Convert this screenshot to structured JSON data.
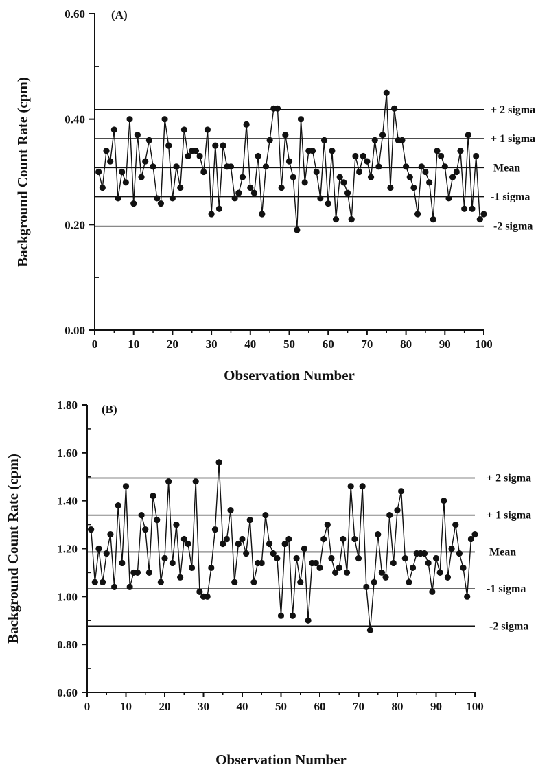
{
  "chart_data": [
    {
      "type": "line",
      "panel_label": "(A)",
      "xlabel": "Observation Number",
      "ylabel": "Background Count Rate (cpm)",
      "xlim": [
        0,
        100
      ],
      "ylim": [
        0.0,
        0.6
      ],
      "x_ticks": [
        0,
        10,
        20,
        30,
        40,
        50,
        60,
        70,
        80,
        90,
        100
      ],
      "y_ticks": [
        0.0,
        0.2,
        0.4,
        0.6
      ],
      "x_tick_labels": [
        "0",
        "10",
        "20",
        "30",
        "40",
        "50",
        "60",
        "70",
        "80",
        "90",
        "100"
      ],
      "y_tick_labels": [
        "0.00",
        "0.20",
        "0.40",
        "0.60"
      ],
      "grid": false,
      "reference_lines": [
        {
          "label": "+ 2 sigma",
          "value": 0.418
        },
        {
          "label": "+ 1 sigma",
          "value": 0.363
        },
        {
          "label": "Mean",
          "value": 0.308
        },
        {
          "label": "-1 sigma",
          "value": 0.253
        },
        {
          "label": "-2 sigma",
          "value": 0.197
        }
      ],
      "series": [
        {
          "x": [
            1,
            2,
            3,
            4,
            5,
            6,
            7,
            8,
            9,
            10,
            11,
            12,
            13,
            14,
            15,
            16,
            17,
            18,
            19,
            20,
            21,
            22,
            23,
            24,
            25,
            26,
            27,
            28,
            29,
            30,
            31,
            32,
            33,
            34,
            35,
            36,
            37,
            38,
            39,
            40,
            41,
            42,
            43,
            44,
            45,
            46,
            47,
            48,
            49,
            50,
            51,
            52,
            53,
            54,
            55,
            56,
            57,
            58,
            59,
            60,
            61,
            62,
            63,
            64,
            65,
            66,
            67,
            68,
            69,
            70,
            71,
            72,
            73,
            74,
            75,
            76,
            77,
            78,
            79,
            80,
            81,
            82,
            83,
            84,
            85,
            86,
            87,
            88,
            89,
            90,
            91,
            92,
            93,
            94,
            95,
            96,
            97,
            98,
            99,
            100
          ],
          "values": [
            0.3,
            0.27,
            0.34,
            0.32,
            0.38,
            0.25,
            0.3,
            0.28,
            0.4,
            0.24,
            0.37,
            0.29,
            0.32,
            0.36,
            0.31,
            0.25,
            0.24,
            0.4,
            0.35,
            0.25,
            0.31,
            0.27,
            0.38,
            0.33,
            0.34,
            0.34,
            0.33,
            0.3,
            0.38,
            0.22,
            0.35,
            0.23,
            0.35,
            0.31,
            0.31,
            0.25,
            0.26,
            0.29,
            0.39,
            0.27,
            0.26,
            0.33,
            0.22,
            0.31,
            0.36,
            0.42,
            0.42,
            0.27,
            0.37,
            0.32,
            0.29,
            0.19,
            0.4,
            0.28,
            0.34,
            0.34,
            0.3,
            0.25,
            0.36,
            0.24,
            0.34,
            0.21,
            0.29,
            0.28,
            0.26,
            0.21,
            0.33,
            0.3,
            0.33,
            0.32,
            0.29,
            0.36,
            0.31,
            0.37,
            0.45,
            0.27,
            0.42,
            0.36,
            0.36,
            0.31,
            0.29,
            0.27,
            0.22,
            0.31,
            0.3,
            0.28,
            0.21,
            0.34,
            0.33,
            0.31,
            0.25,
            0.29,
            0.3,
            0.34,
            0.23,
            0.37,
            0.23,
            0.33,
            0.21,
            0.22
          ]
        }
      ]
    },
    {
      "type": "line",
      "panel_label": "(B)",
      "xlabel": "Observation Number",
      "ylabel": "Background Count Rate (cpm)",
      "xlim": [
        0,
        100
      ],
      "ylim": [
        0.6,
        1.8
      ],
      "x_ticks": [
        0,
        10,
        20,
        30,
        40,
        50,
        60,
        70,
        80,
        90,
        100
      ],
      "y_ticks": [
        0.6,
        0.8,
        1.0,
        1.2,
        1.4,
        1.6,
        1.8
      ],
      "x_tick_labels": [
        "0",
        "10",
        "20",
        "30",
        "40",
        "50",
        "60",
        "70",
        "80",
        "90",
        "100"
      ],
      "y_tick_labels": [
        "0.60",
        "0.80",
        "1.00",
        "1.20",
        "1.40",
        "1.60",
        "1.80"
      ],
      "grid": false,
      "reference_lines": [
        {
          "label": "+ 2 sigma",
          "value": 1.495
        },
        {
          "label": "+ 1 sigma",
          "value": 1.34
        },
        {
          "label": "Mean",
          "value": 1.186
        },
        {
          "label": "-1 sigma",
          "value": 1.032
        },
        {
          "label": "-2 sigma",
          "value": 0.877
        }
      ],
      "series": [
        {
          "x": [
            1,
            2,
            3,
            4,
            5,
            6,
            7,
            8,
            9,
            10,
            11,
            12,
            13,
            14,
            15,
            16,
            17,
            18,
            19,
            20,
            21,
            22,
            23,
            24,
            25,
            26,
            27,
            28,
            29,
            30,
            31,
            32,
            33,
            34,
            35,
            36,
            37,
            38,
            39,
            40,
            41,
            42,
            43,
            44,
            45,
            46,
            47,
            48,
            49,
            50,
            51,
            52,
            53,
            54,
            55,
            56,
            57,
            58,
            59,
            60,
            61,
            62,
            63,
            64,
            65,
            66,
            67,
            68,
            69,
            70,
            71,
            72,
            73,
            74,
            75,
            76,
            77,
            78,
            79,
            80,
            81,
            82,
            83,
            84,
            85,
            86,
            87,
            88,
            89,
            90,
            91,
            92,
            93,
            94,
            95,
            96,
            97,
            98,
            99,
            100
          ],
          "values": [
            1.28,
            1.06,
            1.2,
            1.06,
            1.18,
            1.26,
            1.04,
            1.38,
            1.14,
            1.46,
            1.04,
            1.1,
            1.1,
            1.34,
            1.28,
            1.1,
            1.42,
            1.32,
            1.06,
            1.16,
            1.48,
            1.14,
            1.3,
            1.08,
            1.24,
            1.22,
            1.12,
            1.48,
            1.02,
            1.0,
            1.0,
            1.12,
            1.28,
            1.56,
            1.22,
            1.24,
            1.36,
            1.06,
            1.22,
            1.24,
            1.18,
            1.32,
            1.06,
            1.14,
            1.14,
            1.34,
            1.22,
            1.18,
            1.16,
            0.92,
            1.22,
            1.24,
            0.92,
            1.16,
            1.06,
            1.2,
            0.9,
            1.14,
            1.14,
            1.12,
            1.24,
            1.3,
            1.16,
            1.1,
            1.12,
            1.24,
            1.1,
            1.46,
            1.24,
            1.16,
            1.46,
            1.04,
            0.86,
            1.06,
            1.26,
            1.1,
            1.08,
            1.34,
            1.14,
            1.36,
            1.44,
            1.16,
            1.06,
            1.12,
            1.18,
            1.18,
            1.18,
            1.14,
            1.02,
            1.16,
            1.1,
            1.4,
            1.08,
            1.2,
            1.3,
            1.18,
            1.12,
            1.0,
            1.24,
            1.26
          ]
        }
      ]
    }
  ]
}
